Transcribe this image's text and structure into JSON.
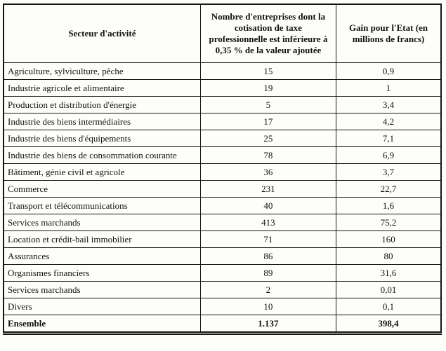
{
  "table": {
    "columns": [
      "Secteur d'activité",
      "Nombre d'entreprises dont la cotisation de taxe professionnelle est inférieure à 0,35 % de la valeur ajoutée",
      "Gain pour l'Etat (en millions de francs)"
    ],
    "rows": [
      [
        "Agriculture, sylviculture, pêche",
        "15",
        "0,9"
      ],
      [
        "Industrie agricole et alimentaire",
        "19",
        "1"
      ],
      [
        "Production et distribution d'énergie",
        "5",
        "3,4"
      ],
      [
        "Industrie des biens intermédiaires",
        "17",
        "4,2"
      ],
      [
        "Industrie des biens d'équipements",
        "25",
        "7,1"
      ],
      [
        "Industrie des biens de consommation courante",
        "78",
        "6,9"
      ],
      [
        "Bâtiment, génie civil et agricole",
        "36",
        "3,7"
      ],
      [
        "Commerce",
        "231",
        "22,7"
      ],
      [
        "Transport et télécommunications",
        "40",
        "1,6"
      ],
      [
        "Services marchands",
        "413",
        "75,2"
      ],
      [
        "Location et crédit-bail immobilier",
        "71",
        "160"
      ],
      [
        "Assurances",
        "86",
        "80"
      ],
      [
        "Organismes financiers",
        "89",
        "31,6"
      ],
      [
        "Services marchands",
        "2",
        "0,01"
      ],
      [
        "Divers",
        "10",
        "0,1"
      ]
    ],
    "total": [
      "Ensemble",
      "1.137",
      "398,4"
    ]
  },
  "colors": {
    "ink": "#151515",
    "paper": "#fdfdfa"
  }
}
